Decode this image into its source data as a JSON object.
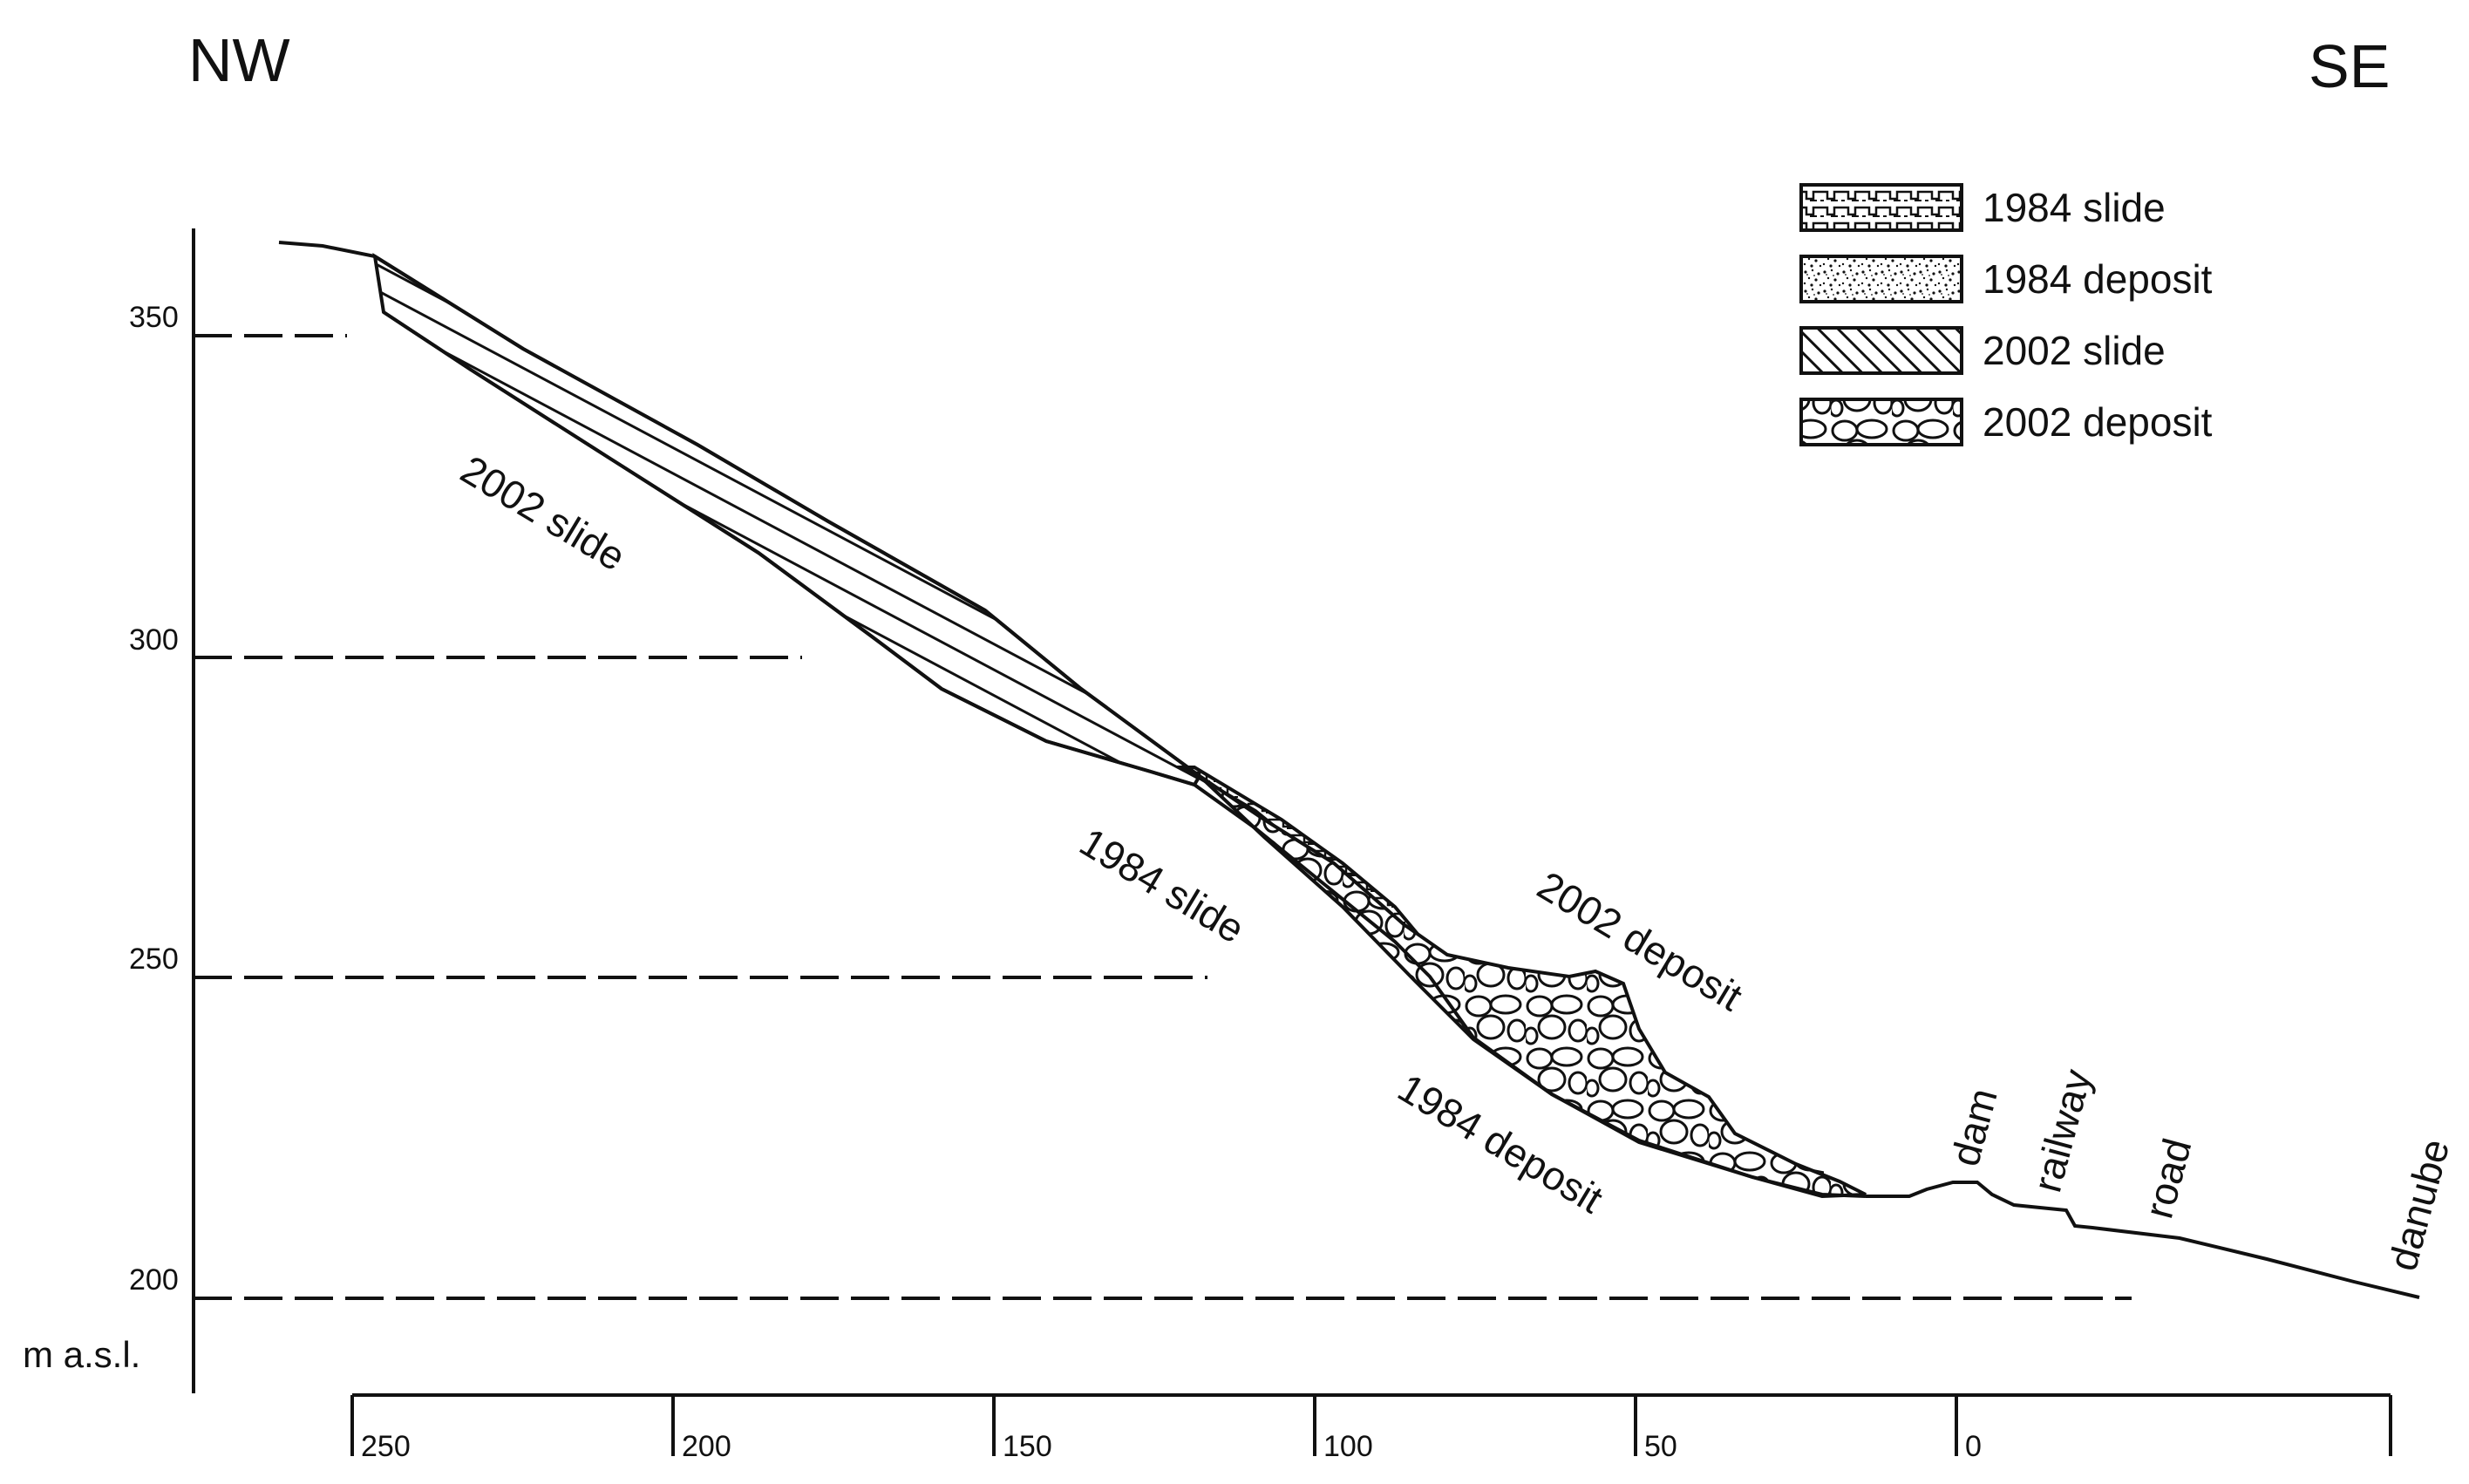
{
  "directions": {
    "left": "NW",
    "right": "SE"
  },
  "elevation_axis": {
    "unit_label": "m a.s.l.",
    "ticks": [
      {
        "value": 350,
        "label": "350"
      },
      {
        "value": 300,
        "label": "300"
      },
      {
        "value": 250,
        "label": "250"
      },
      {
        "value": 200,
        "label": "200"
      }
    ]
  },
  "distance_axis": {
    "ticks": [
      {
        "value": 250,
        "label": "250"
      },
      {
        "value": 200,
        "label": "200"
      },
      {
        "value": 150,
        "label": "150"
      },
      {
        "value": 100,
        "label": "100"
      },
      {
        "value": 50,
        "label": "50"
      },
      {
        "value": 0,
        "label": "0"
      }
    ]
  },
  "profile_labels": {
    "slide_2002": "2002 slide",
    "slide_1984": "1984 slide",
    "deposit_2002": "2002 deposit",
    "deposit_1984": "1984 deposit",
    "dam": "dam",
    "railway": "railway",
    "road": "road",
    "danube": "danube"
  },
  "legend": {
    "items": [
      {
        "key": "slide1984",
        "label": "1984 slide"
      },
      {
        "key": "deposit1984",
        "label": "1984 deposit"
      },
      {
        "key": "slide2002",
        "label": "2002 slide"
      },
      {
        "key": "deposit2002",
        "label": "2002 deposit"
      }
    ]
  },
  "colors": {
    "ink": "#111111",
    "background": "#ffffff"
  }
}
